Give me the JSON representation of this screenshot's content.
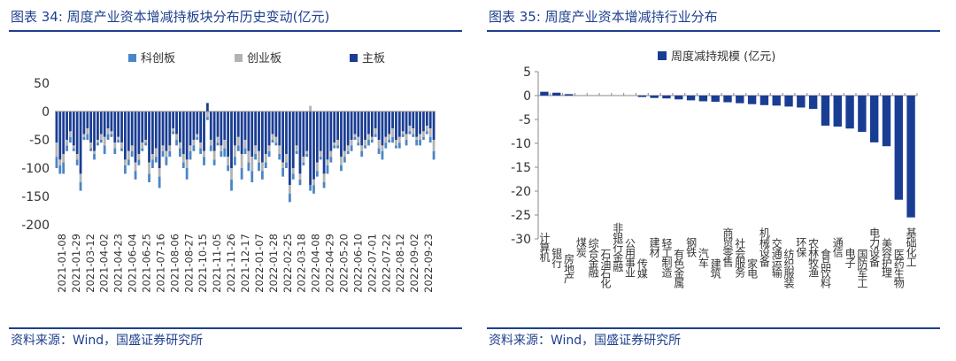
{
  "left": {
    "title": "图表 34:  周度产业资本增减持板块分布历史变动(亿元)",
    "source": "资料来源：Wind，国盛证券研究所"
  },
  "right": {
    "title": "图表 35:  周度产业资本增减持行业分布",
    "source": "资料来源：Wind，国盛证券研究所"
  },
  "colors": {
    "main": "#1a3d94",
    "star": "#4a86c6",
    "gem": "#b3b3b3",
    "accent": "#1f3f8f"
  },
  "chart_data": [
    {
      "type": "bar",
      "stacked": true,
      "title": "",
      "legend_position": "top",
      "ylim": [
        -200,
        50
      ],
      "yticks": [
        50,
        0,
        -50,
        -100,
        -150,
        -200
      ],
      "tick_labels": [
        "2021-01-08",
        "2021-01-29",
        "2021-03-12",
        "2021-04-02",
        "2021-04-23",
        "2021-06-04",
        "2021-06-25",
        "2021-07-16",
        "2021-08-06",
        "2021-08-27",
        "2021-10-15",
        "2021-11-05",
        "2021-11-26",
        "2021-12-17",
        "2022-01-07",
        "2022-01-28",
        "2022-02-25",
        "2022-03-18",
        "2022-04-08",
        "2022-04-29",
        "2022-05-20",
        "2022-06-10",
        "2022-07-01",
        "2022-07-22",
        "2022-08-12",
        "2022-09-02",
        "2022-09-23"
      ],
      "series": [
        {
          "name": "科创板",
          "key": "star",
          "values": [
            -20,
            -15,
            -20,
            -10,
            -10,
            -5,
            -10,
            -15,
            -5,
            -10,
            -5,
            -10,
            -5,
            -5,
            -15,
            -10,
            -5,
            -10,
            -5,
            -5,
            -15,
            -10,
            -10,
            -15,
            -10,
            -5,
            -5,
            -15,
            -15,
            -10,
            -20,
            -10,
            -15,
            -10,
            -5,
            -10,
            -15,
            -10,
            -20,
            -15,
            -10,
            -5,
            -10,
            -15,
            -5,
            -10,
            -10,
            -5,
            -10,
            -15,
            -10,
            -20,
            -15,
            -10,
            -20,
            -10,
            -15,
            -20,
            -10,
            -15,
            -15,
            -10,
            -10,
            -5,
            -5,
            -10,
            -15,
            -10,
            -15,
            -10,
            -5,
            -10,
            -5,
            -5,
            -10,
            -15,
            -10,
            -5,
            -10,
            -15,
            -10,
            -5,
            -5,
            -10,
            -10,
            -5,
            -10,
            -5,
            -5,
            -10,
            -5,
            -10,
            -5,
            -5,
            -10,
            -15,
            -10,
            -5,
            -10,
            -5,
            -10,
            -5,
            -10,
            -5,
            -5,
            -10,
            -10,
            -5,
            -5,
            -10,
            -15
          ]
        },
        {
          "name": "创业板",
          "key": "gem",
          "values": [
            -25,
            -10,
            -15,
            -10,
            -10,
            -5,
            -10,
            -15,
            -5,
            -10,
            -10,
            -5,
            -5,
            -10,
            -15,
            -10,
            -5,
            -10,
            -5,
            -10,
            -10,
            -15,
            -10,
            -15,
            -10,
            -10,
            -5,
            -20,
            -10,
            -15,
            -15,
            -10,
            -10,
            -10,
            -5,
            -10,
            -10,
            -15,
            -15,
            -10,
            -10,
            -5,
            -10,
            -10,
            -10,
            -10,
            -15,
            -10,
            -10,
            -15,
            -15,
            -20,
            -20,
            -15,
            -25,
            -15,
            -20,
            -25,
            -15,
            -20,
            -15,
            -15,
            -10,
            -10,
            -10,
            -15,
            -10,
            -15,
            -15,
            -10,
            -10,
            -10,
            -10,
            -5,
            10,
            -10,
            -15,
            -10,
            -15,
            -10,
            -10,
            -5,
            -10,
            -15,
            -10,
            -10,
            -10,
            -5,
            -10,
            -10,
            -10,
            -10,
            -5,
            -10,
            -15,
            -10,
            -10,
            -10,
            -15,
            -10,
            -10,
            -5,
            -10,
            -10,
            -10,
            -5,
            -10,
            -10,
            -10,
            -15,
            -20
          ]
        },
        {
          "name": "主板",
          "key": "main",
          "values": [
            -55,
            -85,
            -75,
            -50,
            -35,
            -60,
            -75,
            -110,
            -40,
            -30,
            -55,
            -70,
            -50,
            -40,
            -45,
            -30,
            -35,
            -55,
            -45,
            -55,
            -85,
            -70,
            -60,
            -90,
            -75,
            -55,
            -50,
            -90,
            -75,
            -65,
            -100,
            -60,
            -70,
            -60,
            -30,
            -40,
            -55,
            -75,
            -85,
            -60,
            -50,
            -40,
            -55,
            -70,
            15,
            -50,
            -70,
            -45,
            -60,
            -50,
            -80,
            -100,
            -60,
            -45,
            -75,
            -50,
            -70,
            -80,
            -60,
            -70,
            -90,
            -75,
            -60,
            -40,
            -45,
            -60,
            -90,
            -75,
            -130,
            -100,
            -60,
            -110,
            -80,
            -70,
            -130,
            -120,
            -90,
            -70,
            -110,
            -85,
            -70,
            -55,
            -50,
            -80,
            -70,
            -60,
            -50,
            -40,
            -45,
            -60,
            -50,
            -40,
            -45,
            -30,
            -50,
            -60,
            -45,
            -40,
            -30,
            -50,
            -45,
            -35,
            -40,
            -25,
            -30,
            -45,
            -40,
            -35,
            -25,
            -30,
            -50
          ]
        }
      ]
    },
    {
      "type": "bar",
      "title": "",
      "legend_position": "top",
      "ylim": [
        -30,
        5
      ],
      "yticks": [
        5,
        0,
        -5,
        -10,
        -15,
        -20,
        -25,
        -30
      ],
      "series": [
        {
          "name": "周度减持规模 (亿元)",
          "categories": [
            "计算机",
            "银行",
            "房地产",
            "煤炭",
            "综合金融",
            "石油石化",
            "非银行金融",
            "公用事业",
            "传媒",
            "建材",
            "轻工制造",
            "有色金属",
            "钢铁",
            "汽车",
            "建筑",
            "商贸零售",
            "社会服务",
            "家电",
            "机械设备",
            "交通运输",
            "纺织服装",
            "环保",
            "农林牧渔",
            "食品饮料",
            "通信",
            "电子",
            "国防军工",
            "电力设备",
            "美容护理",
            "医药生物",
            "基础化工"
          ],
          "values": [
            0.8,
            0.6,
            0.3,
            0,
            0,
            0,
            0,
            0,
            -0.3,
            -0.5,
            -0.6,
            -0.8,
            -1.0,
            -1.2,
            -1.3,
            -1.4,
            -1.6,
            -1.8,
            -2.0,
            -2.1,
            -2.3,
            -2.5,
            -2.8,
            -6.3,
            -6.5,
            -6.9,
            -7.6,
            -9.8,
            -10.6,
            -21.8,
            -25.5
          ]
        }
      ]
    }
  ]
}
